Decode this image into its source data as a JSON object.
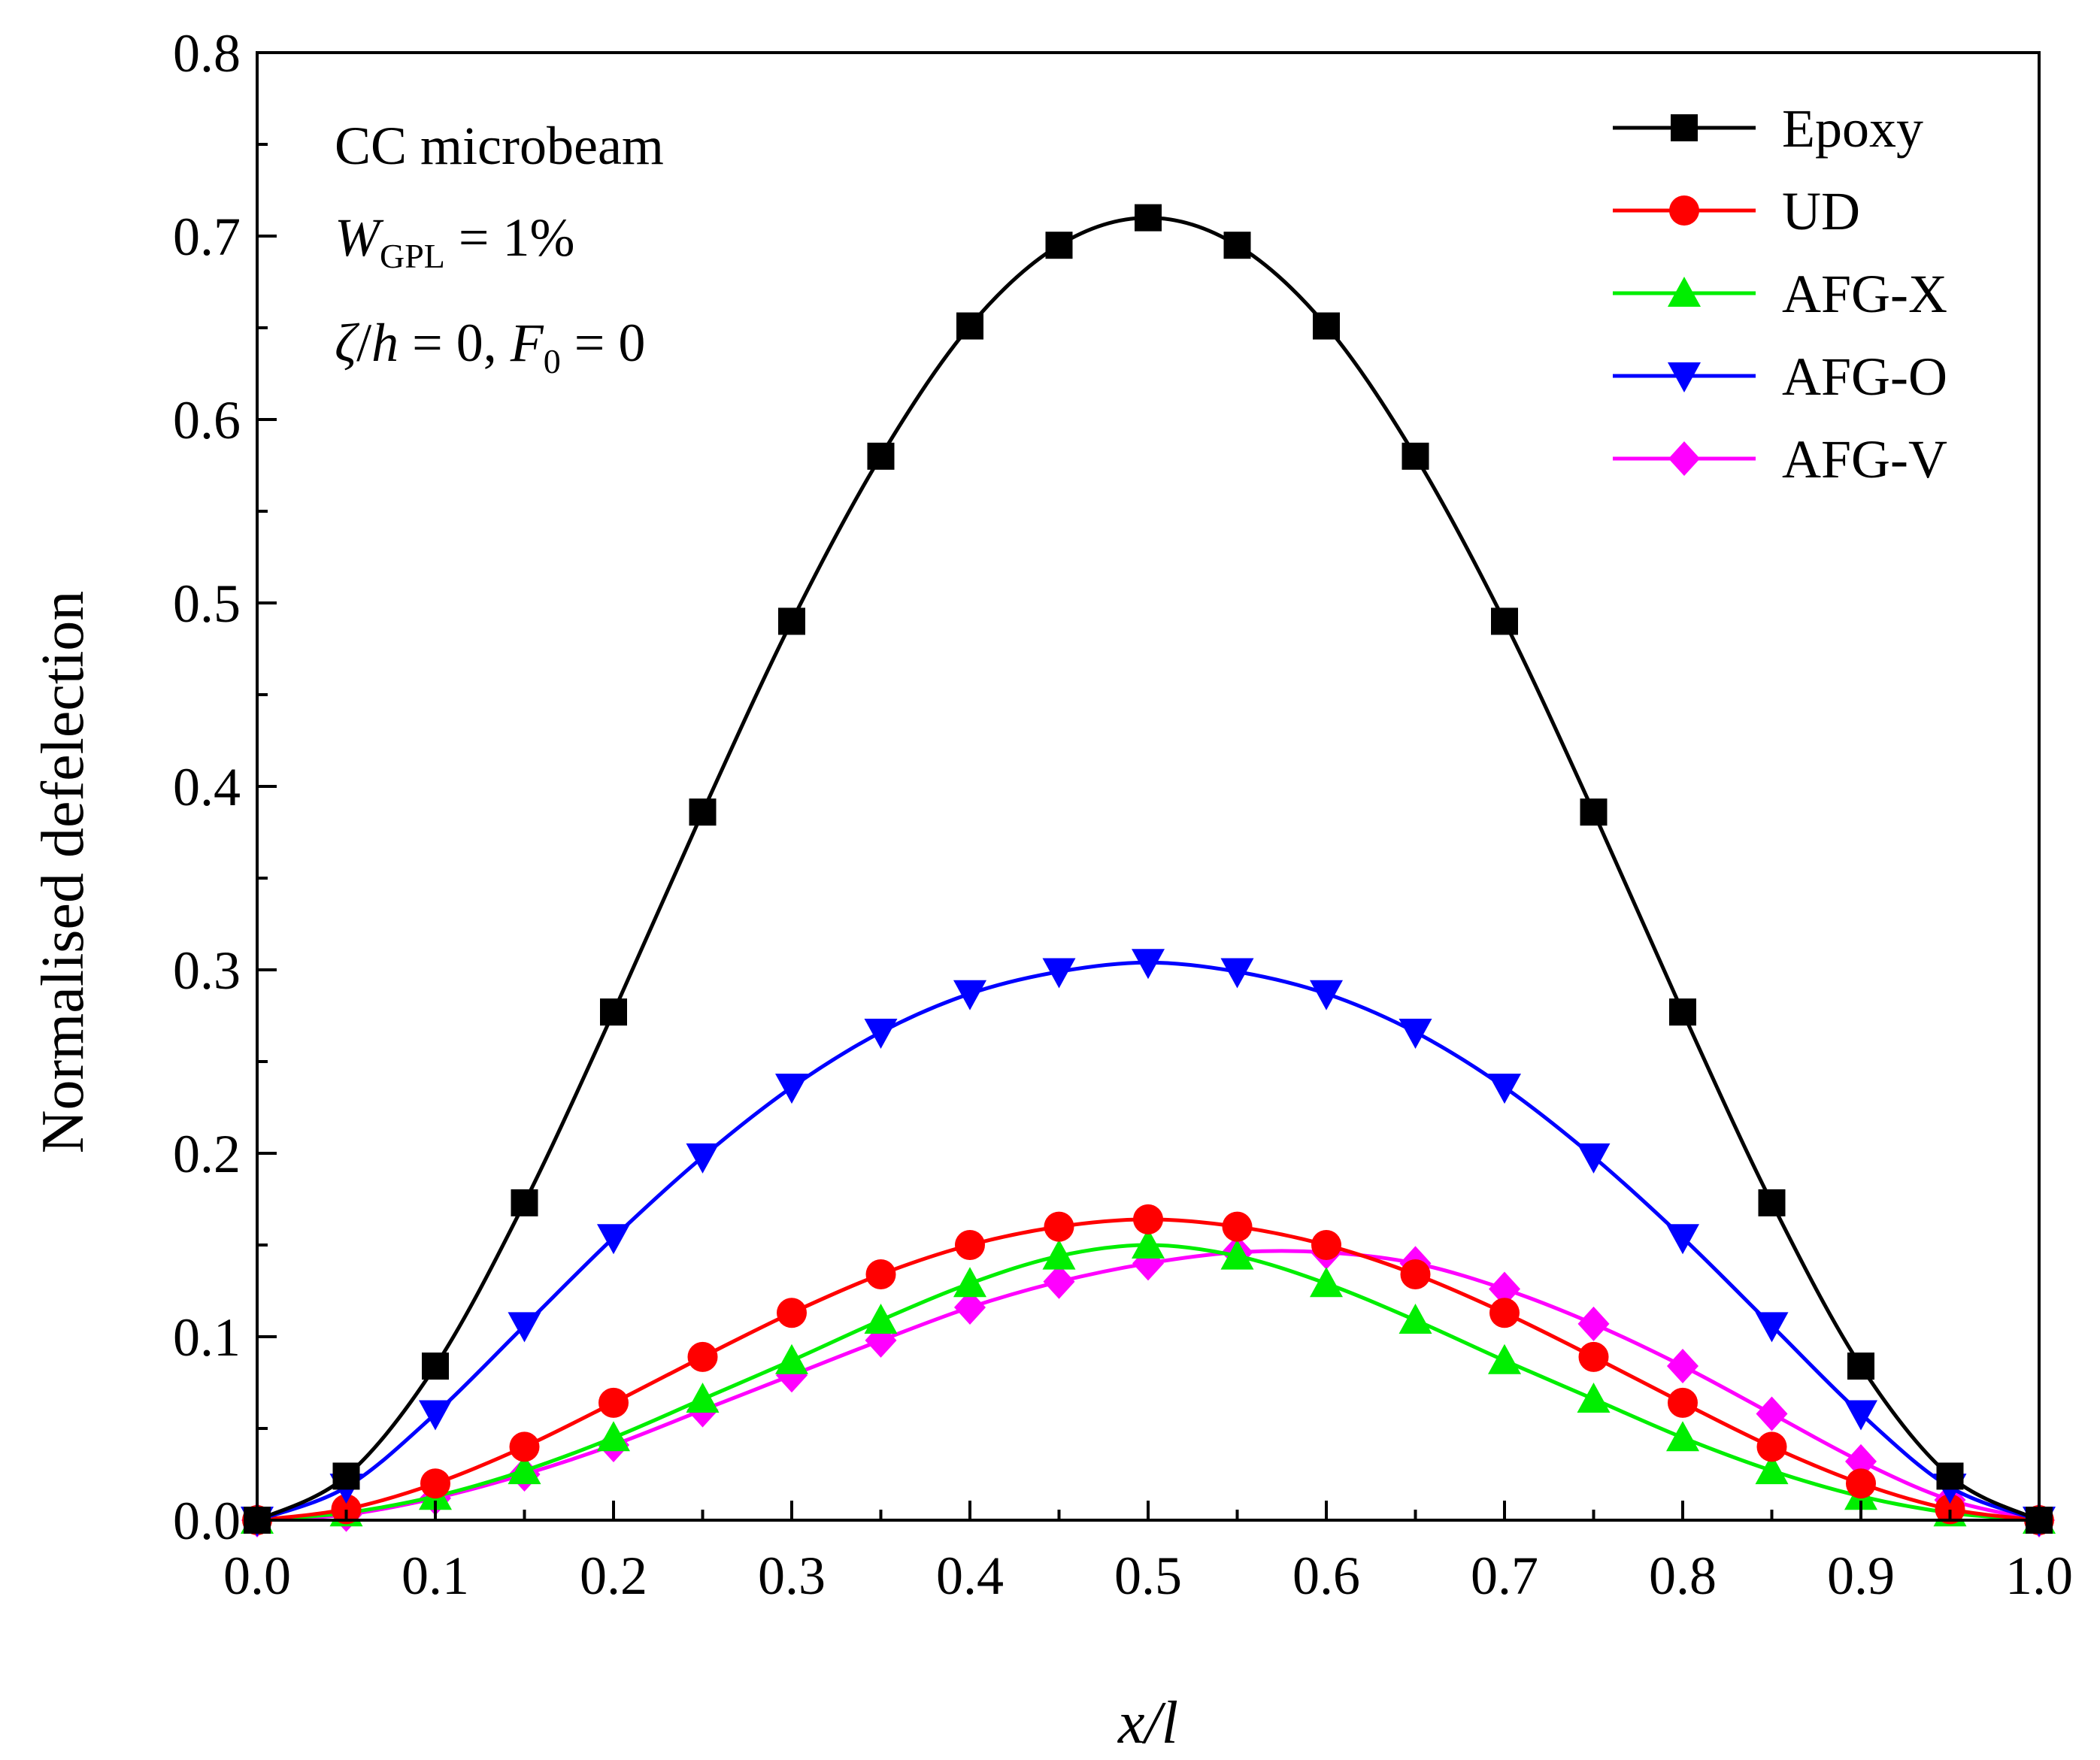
{
  "chart_data": {
    "type": "line",
    "title": "",
    "xlabel": "x/l",
    "ylabel": "Normalised defelection",
    "xlim": [
      0.0,
      1.0
    ],
    "ylim": [
      0.0,
      0.8
    ],
    "xticks": [
      "0.0",
      "0.1",
      "0.2",
      "0.3",
      "0.4",
      "0.5",
      "0.6",
      "0.7",
      "0.8",
      "0.9",
      "1.0"
    ],
    "yticks": [
      "0.0",
      "0.1",
      "0.2",
      "0.3",
      "0.4",
      "0.5",
      "0.6",
      "0.7",
      "0.8"
    ],
    "grid": false,
    "legend_position": "top-right",
    "annotations": {
      "line1": "CC microbeam",
      "line2_main": "W",
      "line2_sub": "GPL",
      "line2_rest": " = 1%",
      "line3_a": "ζ",
      "line3_b": "/",
      "line3_c": "h",
      "line3_d": " = 0, ",
      "line3_e": "F",
      "line3_sub": "0",
      "line3_f": " = 0"
    },
    "x": [
      0.0,
      0.05,
      0.1,
      0.15,
      0.2,
      0.25,
      0.3,
      0.35,
      0.4,
      0.45,
      0.5,
      0.55,
      0.6,
      0.65,
      0.7,
      0.75,
      0.8,
      0.85,
      0.9,
      0.95,
      1.0
    ],
    "series": [
      {
        "name": "Epoxy",
        "color": "#000000",
        "marker": "square",
        "values": [
          0.0,
          0.024,
          0.084,
          0.173,
          0.277,
          0.386,
          0.49,
          0.58,
          0.651,
          0.695,
          0.71,
          0.695,
          0.651,
          0.58,
          0.49,
          0.386,
          0.277,
          0.173,
          0.084,
          0.024,
          0.0
        ]
      },
      {
        "name": "UD",
        "color": "#ff0000",
        "marker": "circle",
        "values": [
          0.0,
          0.006,
          0.02,
          0.04,
          0.064,
          0.089,
          0.113,
          0.134,
          0.15,
          0.16,
          0.164,
          0.16,
          0.15,
          0.134,
          0.113,
          0.089,
          0.064,
          0.04,
          0.02,
          0.006,
          0.0
        ]
      },
      {
        "name": "AFG-X",
        "color": "#00ee00",
        "marker": "triangle-up",
        "values": [
          0.0,
          0.004,
          0.013,
          0.027,
          0.045,
          0.066,
          0.087,
          0.109,
          0.129,
          0.144,
          0.15,
          0.144,
          0.129,
          0.109,
          0.087,
          0.066,
          0.045,
          0.027,
          0.013,
          0.004,
          0.0
        ]
      },
      {
        "name": "AFG-O",
        "color": "#0000ff",
        "marker": "triangle-down",
        "values": [
          0.0,
          0.018,
          0.058,
          0.106,
          0.154,
          0.198,
          0.236,
          0.266,
          0.287,
          0.299,
          0.304,
          0.299,
          0.287,
          0.266,
          0.236,
          0.198,
          0.154,
          0.106,
          0.058,
          0.018,
          0.0
        ]
      },
      {
        "name": "AFG-V",
        "color": "#ff00ff",
        "marker": "diamond",
        "values": [
          0.0,
          0.003,
          0.012,
          0.025,
          0.041,
          0.06,
          0.079,
          0.098,
          0.116,
          0.13,
          0.14,
          0.146,
          0.146,
          0.14,
          0.126,
          0.107,
          0.084,
          0.058,
          0.032,
          0.011,
          0.0
        ]
      }
    ]
  }
}
